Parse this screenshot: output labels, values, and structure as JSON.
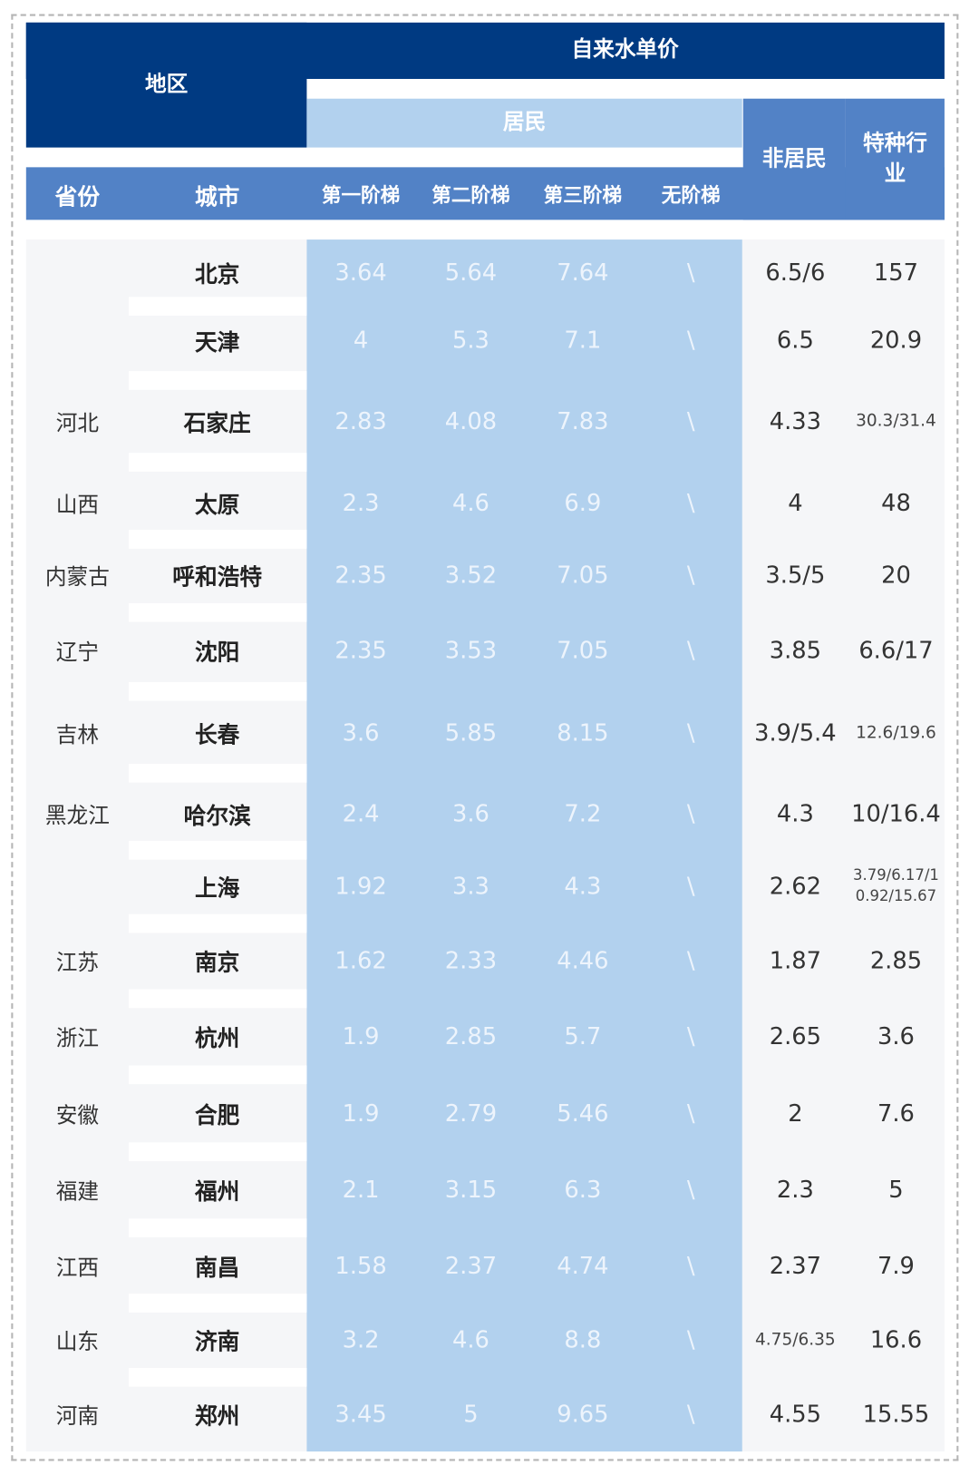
{
  "header": {
    "region": "地区",
    "water_price": "自来水单价",
    "residential": "居民",
    "non_residential": "非居民",
    "special": "特种行业",
    "columns": [
      "省份",
      "城市",
      "第一阶梯",
      "第二阶梯",
      "第三阶梯",
      "无阶梯"
    ]
  },
  "colors": {
    "dark": "#003a82",
    "medium": "#5282c6",
    "light": "#b2d1ee"
  },
  "rows": [
    {
      "province": "",
      "city": "北京",
      "t1": "3.64",
      "t2": "5.64",
      "t3": "7.64",
      "none": "\\",
      "nonres": "6.5/6",
      "special": "157"
    },
    {
      "province": "",
      "city": "天津",
      "t1": "4",
      "t2": "5.3",
      "t3": "7.1",
      "none": "\\",
      "nonres": "6.5",
      "special": "20.9"
    },
    {
      "province": "河北",
      "city": "石家庄",
      "t1": "2.83",
      "t2": "4.08",
      "t3": "7.83",
      "none": "\\",
      "nonres": "4.33",
      "special": "30.3/31.4"
    },
    {
      "province": "山西",
      "city": "太原",
      "t1": "2.3",
      "t2": "4.6",
      "t3": "6.9",
      "none": "\\",
      "nonres": "4",
      "special": "48"
    },
    {
      "province": "内蒙古",
      "city": "呼和浩特",
      "t1": "2.35",
      "t2": "3.52",
      "t3": "7.05",
      "none": "\\",
      "nonres": "3.5/5",
      "special": "20"
    },
    {
      "province": "辽宁",
      "city": "沈阳",
      "t1": "2.35",
      "t2": "3.53",
      "t3": "7.05",
      "none": "\\",
      "nonres": "3.85",
      "special": "6.6/17"
    },
    {
      "province": "吉林",
      "city": "长春",
      "t1": "3.6",
      "t2": "5.85",
      "t3": "8.15",
      "none": "\\",
      "nonres": "3.9/5.4",
      "special": "12.6/19.6"
    },
    {
      "province": "黑龙江",
      "city": "哈尔滨",
      "t1": "2.4",
      "t2": "3.6",
      "t3": "7.2",
      "none": "\\",
      "nonres": "4.3",
      "special": "10/16.4"
    },
    {
      "province": "",
      "city": "上海",
      "t1": "1.92",
      "t2": "3.3",
      "t3": "4.3",
      "none": "\\",
      "nonres": "2.62",
      "special": "3.79/6.17/10.92/15.67"
    },
    {
      "province": "江苏",
      "city": "南京",
      "t1": "1.62",
      "t2": "2.33",
      "t3": "4.46",
      "none": "\\",
      "nonres": "1.87",
      "special": "2.85"
    },
    {
      "province": "浙江",
      "city": "杭州",
      "t1": "1.9",
      "t2": "2.85",
      "t3": "5.7",
      "none": "\\",
      "nonres": "2.65",
      "special": "3.6"
    },
    {
      "province": "安徽",
      "city": "合肥",
      "t1": "1.9",
      "t2": "2.79",
      "t3": "5.46",
      "none": "\\",
      "nonres": "2",
      "special": "7.6"
    },
    {
      "province": "福建",
      "city": "福州",
      "t1": "2.1",
      "t2": "3.15",
      "t3": "6.3",
      "none": "\\",
      "nonres": "2.3",
      "special": "5"
    },
    {
      "province": "江西",
      "city": "南昌",
      "t1": "1.58",
      "t2": "2.37",
      "t3": "4.74",
      "none": "\\",
      "nonres": "2.37",
      "special": "7.9"
    },
    {
      "province": "山东",
      "city": "济南",
      "t1": "3.2",
      "t2": "4.6",
      "t3": "8.8",
      "none": "\\",
      "nonres": "4.75/6.35",
      "special": "16.6"
    },
    {
      "province": "河南",
      "city": "郑州",
      "t1": "3.45",
      "t2": "5",
      "t3": "9.65",
      "none": "\\",
      "nonres": "4.55",
      "special": "15.55"
    }
  ]
}
